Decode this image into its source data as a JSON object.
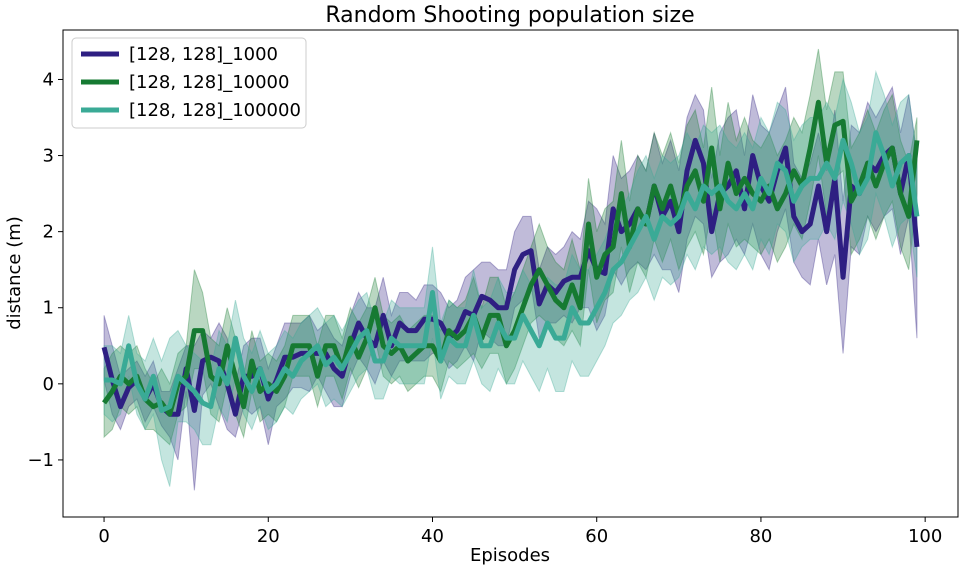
{
  "chart_data": {
    "type": "line",
    "title": "Random Shooting population size",
    "xlabel": "Episodes",
    "ylabel": "distance (m)",
    "xlim": [
      -5,
      104
    ],
    "ylim": [
      -1.75,
      4.65
    ],
    "xticks": [
      0,
      20,
      40,
      60,
      80,
      100
    ],
    "xtick_labels": [
      "0",
      "20",
      "40",
      "60",
      "80",
      "100"
    ],
    "yticks": [
      -1,
      0,
      1,
      2,
      3,
      4
    ],
    "ytick_labels": [
      "−1",
      "0",
      "1",
      "2",
      "3",
      "4"
    ],
    "grid": false,
    "legend_position": "top-left",
    "series": [
      {
        "name": "[128, 128]_1000",
        "color": "#2e1f82",
        "x_start": 0,
        "values": [
          0.48,
          0.05,
          -0.3,
          -0.05,
          0.05,
          -0.2,
          0.0,
          -0.3,
          -0.4,
          -0.4,
          0.2,
          -0.35,
          0.3,
          0.35,
          0.3,
          0.0,
          -0.4,
          0.1,
          0.1,
          0.2,
          -0.2,
          0.05,
          0.35,
          0.35,
          0.4,
          0.4,
          0.4,
          0.4,
          0.2,
          0.1,
          0.5,
          0.8,
          0.6,
          0.5,
          0.9,
          0.5,
          0.8,
          0.7,
          0.7,
          0.85,
          0.85,
          0.8,
          0.6,
          0.7,
          0.95,
          0.9,
          1.15,
          1.1,
          1.0,
          1.0,
          1.5,
          1.7,
          1.75,
          1.05,
          1.3,
          1.2,
          1.35,
          1.4,
          1.4,
          1.75,
          1.5,
          1.45,
          2.3,
          2.0,
          2.1,
          2.3,
          2.1,
          2.6,
          2.2,
          2.4,
          2.0,
          2.8,
          3.2,
          2.9,
          2.0,
          2.5,
          2.6,
          2.8,
          2.3,
          3.0,
          2.6,
          2.4,
          2.8,
          3.1,
          2.2,
          2.0,
          2.1,
          2.6,
          2.0,
          2.7,
          1.4,
          2.6,
          2.5,
          2.9,
          2.8,
          3.0,
          3.1,
          2.5,
          3.0,
          1.8
        ],
        "band_lower": [
          0.05,
          -0.4,
          -0.6,
          -0.3,
          -0.2,
          -0.5,
          -0.3,
          -0.55,
          -0.7,
          -1.0,
          -0.1,
          -1.4,
          -0.15,
          0.0,
          -0.3,
          -0.6,
          -0.7,
          -0.3,
          -0.4,
          -0.3,
          -0.8,
          -0.3,
          -0.2,
          -0.05,
          -0.05,
          -0.1,
          0.1,
          -0.1,
          -0.3,
          -0.3,
          0.1,
          0.35,
          0.2,
          0.0,
          0.3,
          0.1,
          0.3,
          0.3,
          0.3,
          0.3,
          0.4,
          0.4,
          0.2,
          0.3,
          0.5,
          0.3,
          0.7,
          0.6,
          0.5,
          0.5,
          1.0,
          1.1,
          1.3,
          0.6,
          0.8,
          0.8,
          0.9,
          0.8,
          1.0,
          1.0,
          0.7,
          0.9,
          1.5,
          1.3,
          1.5,
          1.6,
          1.5,
          1.7,
          1.5,
          1.5,
          1.2,
          1.9,
          2.2,
          2.1,
          1.4,
          1.6,
          1.7,
          1.9,
          1.7,
          2.1,
          1.7,
          1.5,
          2.0,
          2.3,
          1.6,
          1.4,
          1.3,
          1.9,
          1.3,
          1.7,
          0.4,
          1.8,
          1.7,
          2.2,
          2.0,
          2.2,
          2.3,
          1.7,
          2.2,
          0.6
        ],
        "band_upper": [
          0.9,
          0.5,
          0.1,
          0.2,
          0.3,
          0.1,
          0.3,
          -0.1,
          -0.1,
          0.2,
          0.5,
          0.5,
          0.7,
          0.6,
          0.8,
          0.6,
          0.0,
          0.5,
          0.6,
          0.6,
          0.2,
          0.5,
          0.8,
          0.8,
          0.8,
          0.9,
          0.7,
          0.8,
          0.6,
          0.5,
          0.9,
          1.2,
          1.0,
          1.0,
          1.4,
          0.9,
          1.2,
          1.2,
          1.1,
          1.3,
          1.3,
          1.2,
          1.0,
          1.1,
          1.4,
          1.5,
          1.6,
          1.6,
          1.5,
          1.5,
          2.0,
          2.2,
          2.2,
          1.5,
          1.8,
          1.7,
          1.8,
          2.0,
          1.9,
          2.4,
          2.3,
          2.1,
          3.0,
          2.7,
          2.8,
          3.0,
          2.8,
          3.3,
          2.9,
          3.2,
          2.8,
          3.5,
          3.8,
          3.6,
          2.7,
          3.3,
          3.5,
          3.6,
          3.0,
          3.8,
          3.4,
          3.3,
          3.6,
          3.9,
          2.9,
          2.7,
          2.9,
          3.3,
          2.8,
          3.6,
          2.4,
          3.4,
          3.3,
          3.7,
          3.5,
          3.7,
          3.9,
          3.3,
          3.8,
          3.0
        ]
      },
      {
        "name": "[128, 128]_10000",
        "color": "#167a32",
        "x_start": 0,
        "values": [
          -0.25,
          -0.1,
          0.1,
          0.0,
          0.1,
          -0.2,
          -0.3,
          -0.25,
          -0.4,
          0.0,
          0.1,
          0.7,
          0.7,
          0.1,
          0.0,
          0.5,
          0.1,
          -0.3,
          0.3,
          -0.1,
          0.0,
          -0.1,
          0.1,
          0.5,
          0.5,
          0.5,
          0.1,
          0.5,
          0.5,
          0.2,
          0.6,
          0.35,
          0.6,
          1.0,
          0.5,
          0.4,
          0.5,
          0.3,
          0.4,
          0.5,
          0.5,
          0.3,
          0.7,
          0.6,
          0.7,
          0.9,
          0.6,
          0.9,
          0.9,
          0.5,
          0.7,
          1.0,
          1.3,
          1.5,
          1.3,
          1.1,
          1.0,
          1.3,
          1.0,
          2.1,
          1.4,
          1.7,
          1.8,
          2.5,
          1.8,
          2.3,
          2.1,
          2.6,
          2.3,
          2.6,
          2.2,
          2.6,
          2.8,
          2.4,
          3.1,
          2.3,
          2.9,
          2.5,
          2.7,
          2.5,
          2.4,
          2.6,
          2.3,
          2.5,
          2.8,
          2.6,
          3.1,
          3.7,
          2.9,
          3.4,
          3.45,
          2.4,
          2.6,
          2.9,
          2.6,
          2.9,
          3.1,
          2.5,
          2.2,
          3.2
        ],
        "band_lower": [
          -0.7,
          -0.6,
          -0.3,
          -0.4,
          -0.3,
          -0.6,
          -0.6,
          -0.7,
          -0.8,
          -0.4,
          -0.3,
          0.2,
          0.2,
          -0.4,
          -0.5,
          0.0,
          -0.4,
          -0.7,
          -0.1,
          -0.5,
          -0.4,
          -0.5,
          -0.3,
          0.1,
          0.1,
          0.1,
          -0.3,
          0.1,
          0.1,
          -0.2,
          0.2,
          -0.05,
          0.2,
          0.6,
          0.1,
          0.0,
          0.1,
          -0.1,
          0.0,
          0.1,
          0.1,
          -0.1,
          0.3,
          0.2,
          0.3,
          0.4,
          0.2,
          0.4,
          0.4,
          0.0,
          0.2,
          0.5,
          0.8,
          0.9,
          0.8,
          0.6,
          0.5,
          0.7,
          0.5,
          1.5,
          0.8,
          1.1,
          1.2,
          1.8,
          1.2,
          1.6,
          1.4,
          1.9,
          1.6,
          1.9,
          1.5,
          1.8,
          2.0,
          1.7,
          2.3,
          1.6,
          2.1,
          1.8,
          1.9,
          1.8,
          1.7,
          1.9,
          1.6,
          1.8,
          2.1,
          1.9,
          2.4,
          3.0,
          2.2,
          2.7,
          2.8,
          1.7,
          1.9,
          2.2,
          1.9,
          2.2,
          2.4,
          1.8,
          1.5,
          2.5
        ],
        "band_upper": [
          0.2,
          0.4,
          0.5,
          0.4,
          0.5,
          0.2,
          0.0,
          0.2,
          0.0,
          0.4,
          0.5,
          1.5,
          1.2,
          0.6,
          0.5,
          1.0,
          0.6,
          0.1,
          0.7,
          0.3,
          0.4,
          0.3,
          0.5,
          0.9,
          0.9,
          0.9,
          0.5,
          0.9,
          0.9,
          0.6,
          1.0,
          0.8,
          1.0,
          1.4,
          0.9,
          0.8,
          0.9,
          0.7,
          0.8,
          0.9,
          0.9,
          0.7,
          1.1,
          1.0,
          1.1,
          1.4,
          1.0,
          1.4,
          1.4,
          1.0,
          1.2,
          1.5,
          1.8,
          2.1,
          1.8,
          1.6,
          1.5,
          1.9,
          1.5,
          2.7,
          2.0,
          2.3,
          2.4,
          3.2,
          2.4,
          3.0,
          2.8,
          3.3,
          3.0,
          3.3,
          2.9,
          3.4,
          3.6,
          3.1,
          3.9,
          3.0,
          3.7,
          3.2,
          3.5,
          3.2,
          3.1,
          3.3,
          3.0,
          3.2,
          3.5,
          3.3,
          3.8,
          4.4,
          3.6,
          4.1,
          4.1,
          3.1,
          3.3,
          3.6,
          3.3,
          3.6,
          3.8,
          3.2,
          2.9,
          3.5
        ]
      },
      {
        "name": "[128, 128]_100000",
        "color": "#3aaa96",
        "x_start": 0,
        "values": [
          0.05,
          0.05,
          0.0,
          0.5,
          0.0,
          -0.2,
          0.1,
          -0.35,
          -0.3,
          0.1,
          0.0,
          -0.1,
          -0.25,
          -0.3,
          0.2,
          0.0,
          0.6,
          0.1,
          -0.1,
          0.2,
          -0.1,
          0.0,
          0.2,
          0.1,
          0.3,
          0.4,
          0.5,
          0.25,
          0.35,
          0.2,
          0.4,
          0.6,
          0.7,
          0.3,
          0.3,
          0.6,
          0.5,
          0.5,
          0.5,
          0.5,
          1.2,
          0.3,
          0.6,
          0.5,
          0.5,
          0.9,
          0.5,
          0.5,
          0.8,
          0.6,
          0.6,
          0.9,
          0.7,
          0.5,
          0.8,
          0.6,
          0.6,
          1.0,
          0.8,
          0.8,
          1.0,
          1.2,
          1.5,
          1.6,
          1.8,
          2.0,
          2.2,
          1.9,
          2.2,
          2.1,
          2.2,
          2.5,
          2.3,
          2.6,
          2.5,
          2.6,
          2.4,
          2.3,
          2.5,
          2.3,
          2.7,
          2.5,
          2.9,
          2.8,
          2.4,
          2.6,
          2.7,
          2.7,
          2.9,
          2.7,
          3.2,
          2.9,
          2.5,
          2.7,
          3.3,
          3.0,
          2.6,
          2.9,
          3.0,
          2.2
        ],
        "band_lower": [
          -0.4,
          -0.5,
          -0.4,
          0.1,
          -0.4,
          -0.6,
          -0.4,
          -1.0,
          -1.35,
          -0.5,
          -0.5,
          -0.6,
          -0.8,
          -0.8,
          -0.3,
          -0.5,
          0.1,
          -0.4,
          -0.6,
          -0.3,
          -0.6,
          -0.5,
          -0.3,
          -0.4,
          -0.2,
          -0.1,
          0.0,
          -0.3,
          -0.2,
          -0.3,
          -0.1,
          0.1,
          0.2,
          -0.2,
          -0.2,
          0.1,
          0.0,
          0.0,
          0.0,
          0.0,
          0.6,
          -0.2,
          0.1,
          0.0,
          0.0,
          0.3,
          0.0,
          -0.1,
          0.2,
          0.0,
          0.0,
          0.3,
          0.1,
          -0.1,
          0.2,
          -0.1,
          -0.1,
          0.3,
          0.1,
          0.1,
          0.3,
          0.5,
          0.8,
          0.9,
          1.1,
          1.2,
          1.4,
          1.1,
          1.4,
          1.3,
          1.4,
          1.7,
          1.5,
          1.8,
          1.7,
          1.8,
          1.6,
          1.5,
          1.7,
          1.5,
          1.9,
          1.7,
          2.1,
          2.0,
          1.6,
          1.8,
          1.9,
          1.9,
          2.1,
          1.9,
          2.4,
          2.1,
          1.7,
          1.9,
          2.5,
          2.2,
          1.8,
          2.1,
          2.2,
          1.4
        ],
        "band_upper": [
          0.5,
          0.5,
          0.4,
          0.9,
          0.4,
          0.3,
          0.6,
          0.3,
          0.6,
          0.7,
          0.5,
          0.4,
          0.3,
          0.2,
          0.7,
          0.5,
          1.1,
          0.6,
          0.4,
          0.7,
          0.4,
          0.5,
          0.7,
          0.6,
          0.8,
          0.9,
          1.0,
          0.8,
          0.9,
          0.7,
          0.9,
          1.1,
          1.2,
          0.8,
          0.8,
          1.1,
          1.0,
          1.0,
          1.0,
          1.0,
          1.8,
          0.8,
          1.1,
          1.0,
          1.0,
          1.5,
          1.0,
          1.1,
          1.4,
          1.2,
          1.2,
          1.5,
          1.3,
          1.1,
          1.4,
          1.3,
          1.3,
          1.7,
          1.5,
          1.5,
          1.7,
          1.9,
          2.2,
          2.3,
          2.5,
          2.8,
          3.0,
          2.7,
          3.0,
          2.9,
          3.0,
          3.3,
          3.1,
          3.4,
          3.3,
          3.4,
          3.2,
          3.1,
          3.3,
          3.1,
          3.5,
          3.3,
          3.7,
          3.6,
          3.2,
          3.4,
          3.5,
          3.5,
          3.7,
          3.5,
          4.0,
          3.7,
          3.3,
          3.5,
          4.1,
          3.8,
          3.4,
          3.7,
          3.8,
          3.0
        ]
      }
    ]
  }
}
